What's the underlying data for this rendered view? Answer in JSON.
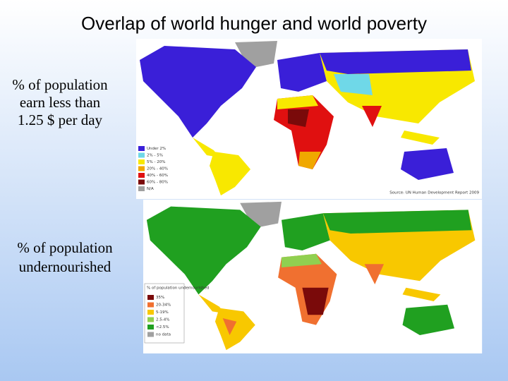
{
  "title": "Overlap of world hunger and world poverty",
  "maps": [
    {
      "label_lines": [
        "% of population",
        "earn less than",
        "1.25 $ per day"
      ],
      "legend": [
        {
          "label": "Under 2%",
          "color": "#3a1fd8"
        },
        {
          "label": "2% - 5%",
          "color": "#6fd8e8"
        },
        {
          "label": "5% - 20%",
          "color": "#f8e800"
        },
        {
          "label": "20% - 40%",
          "color": "#f0a800"
        },
        {
          "label": "40% - 60%",
          "color": "#e01010"
        },
        {
          "label": "60% - 80%",
          "color": "#7a0a0a"
        },
        {
          "label": "N/A",
          "color": "#a0a0a0"
        }
      ],
      "source": "Source: UN Human Development Report 2009"
    },
    {
      "label_lines": [
        "% of population",
        "undernourished"
      ],
      "legend_title": "% of population undernourished",
      "legend": [
        {
          "label": "35%",
          "color": "#7a0a0a"
        },
        {
          "label": "20-34%",
          "color": "#f07030"
        },
        {
          "label": "5-19%",
          "color": "#f8c800"
        },
        {
          "label": "2.5-4%",
          "color": "#90d050"
        },
        {
          "label": "<2.5%",
          "color": "#20a020"
        },
        {
          "label": "no data",
          "color": "#a0a0a0"
        }
      ]
    }
  ]
}
